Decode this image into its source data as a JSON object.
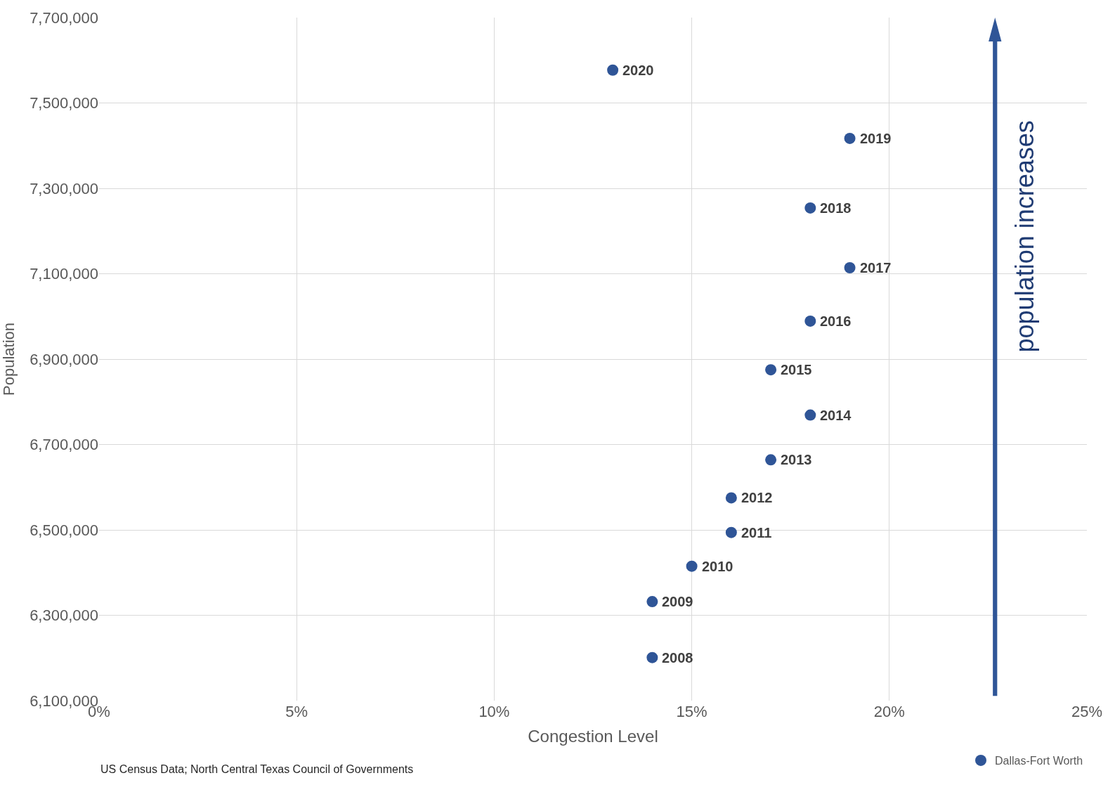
{
  "chart_data": {
    "type": "scatter",
    "xlabel": "Congestion Level",
    "ylabel": "Population",
    "x": [
      14,
      14,
      15,
      16,
      16,
      17,
      18,
      17,
      18,
      19,
      18,
      19,
      13
    ],
    "series": [
      {
        "name": "Dallas-Fort Worth",
        "color": "#2f5597",
        "values": [
          6201000,
          6332000,
          6415000,
          6494000,
          6575000,
          6664000,
          6769000,
          6875000,
          6989000,
          7114000,
          7254000,
          7417000,
          7577000
        ]
      }
    ],
    "xlim": [
      0,
      25
    ],
    "ylim": [
      6100000,
      7700000
    ],
    "xticks": [
      {
        "value": 0,
        "label": "0%"
      },
      {
        "value": 5,
        "label": "5%"
      },
      {
        "value": 10,
        "label": "10%"
      },
      {
        "value": 15,
        "label": "15%"
      },
      {
        "value": 20,
        "label": "20%"
      },
      {
        "value": 25,
        "label": "25%"
      }
    ],
    "yticks": [
      {
        "value": 6100000,
        "label": "6,100,000"
      },
      {
        "value": 6300000,
        "label": "6,300,000"
      },
      {
        "value": 6500000,
        "label": "6,500,000"
      },
      {
        "value": 6700000,
        "label": "6,700,000"
      },
      {
        "value": 6900000,
        "label": "6,900,000"
      },
      {
        "value": 7100000,
        "label": "7,100,000"
      },
      {
        "value": 7300000,
        "label": "7,300,000"
      },
      {
        "value": 7500000,
        "label": "7,500,000"
      },
      {
        "value": 7700000,
        "label": "7,700,000"
      }
    ],
    "annotations": [
      "population increases",
      "US Census Data; North Central Texas Council of Governments",
      {
        "text": "2008",
        "x": 14,
        "y": 6201000
      },
      {
        "text": "2009",
        "x": 14,
        "y": 6332000
      },
      {
        "text": "2010",
        "x": 15,
        "y": 6415000
      },
      {
        "text": "2011",
        "x": 16,
        "y": 6494000
      },
      {
        "text": "2012",
        "x": 16,
        "y": 6575000
      },
      {
        "text": "2013",
        "x": 17,
        "y": 6664000
      },
      {
        "text": "2014",
        "x": 18,
        "y": 6769000
      },
      {
        "text": "2015",
        "x": 17,
        "y": 6875000
      },
      {
        "text": "2016",
        "x": 18,
        "y": 6989000
      },
      {
        "text": "2017",
        "x": 19,
        "y": 7114000
      },
      {
        "text": "2018",
        "x": 18,
        "y": 7254000
      },
      {
        "text": "2019",
        "x": 19,
        "y": 7417000
      },
      {
        "text": "2020",
        "x": 13,
        "y": 7577000
      }
    ],
    "grid": true,
    "legend": "bottom right",
    "marker": "circle"
  }
}
